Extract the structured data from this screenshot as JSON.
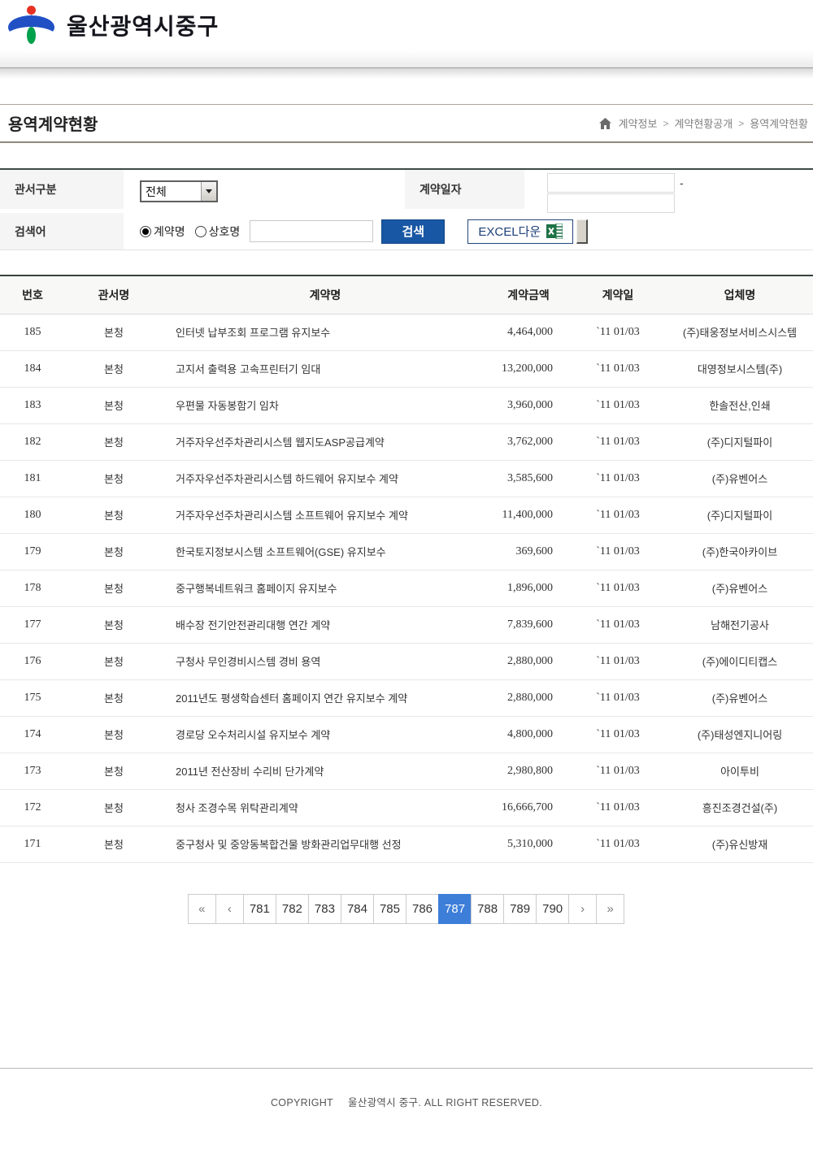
{
  "header": {
    "site_name": "울산광역시중구"
  },
  "page": {
    "title": "용역계약현황"
  },
  "breadcrumb": {
    "separator": ">",
    "items": [
      "계약정보",
      "계약현황공개",
      "용역계약현황"
    ]
  },
  "search": {
    "office_label": "관서구분",
    "office_value": "전체",
    "date_label": "계약일자",
    "date_separator": "-",
    "date_from_value": "",
    "date_to_value": "",
    "keyword_label": "검색어",
    "radio_contract_label": "계약명",
    "radio_company_label": "상호명",
    "keyword_value": "",
    "search_button_label": "검색",
    "excel_button_label": "EXCEL다운"
  },
  "table": {
    "headers": [
      "번호",
      "관서명",
      "계약명",
      "계약금액",
      "계약일",
      "업체명"
    ],
    "rows": [
      {
        "no": "185",
        "office": "본청",
        "name": "인터넷 납부조회 프로그램 유지보수",
        "amount": "4,464,000",
        "date": "`11 01/03",
        "company": "(주)태웅정보서비스시스템"
      },
      {
        "no": "184",
        "office": "본청",
        "name": "고지서 출력용 고속프린터기 임대",
        "amount": "13,200,000",
        "date": "`11 01/03",
        "company": "대영정보시스템(주)"
      },
      {
        "no": "183",
        "office": "본청",
        "name": "우편물 자동봉함기 임차",
        "amount": "3,960,000",
        "date": "`11 01/03",
        "company": "한솔전산,인쇄"
      },
      {
        "no": "182",
        "office": "본청",
        "name": "거주자우선주차관리시스템 웹지도ASP공급계약",
        "amount": "3,762,000",
        "date": "`11 01/03",
        "company": "(주)디지털파이"
      },
      {
        "no": "181",
        "office": "본청",
        "name": "거주자우선주차관리시스템 하드웨어 유지보수 계약",
        "amount": "3,585,600",
        "date": "`11 01/03",
        "company": "(주)유벤어스"
      },
      {
        "no": "180",
        "office": "본청",
        "name": "거주자우선주차관리시스템 소프트웨어 유지보수 계약",
        "amount": "11,400,000",
        "date": "`11 01/03",
        "company": "(주)디지털파이"
      },
      {
        "no": "179",
        "office": "본청",
        "name": "한국토지정보시스템 소프트웨어(GSE) 유지보수",
        "amount": "369,600",
        "date": "`11 01/03",
        "company": "(주)한국아카이브"
      },
      {
        "no": "178",
        "office": "본청",
        "name": "중구행복네트워크 홈페이지 유지보수",
        "amount": "1,896,000",
        "date": "`11 01/03",
        "company": "(주)유벤어스"
      },
      {
        "no": "177",
        "office": "본청",
        "name": "배수장 전기안전관리대행 연간 계약",
        "amount": "7,839,600",
        "date": "`11 01/03",
        "company": "남해전기공사"
      },
      {
        "no": "176",
        "office": "본청",
        "name": "구청사 무인경비시스템 경비 용역",
        "amount": "2,880,000",
        "date": "`11 01/03",
        "company": "(주)에이디티캡스"
      },
      {
        "no": "175",
        "office": "본청",
        "name": "2011년도 평생학습센터 홈페이지 연간 유지보수 계약",
        "amount": "2,880,000",
        "date": "`11 01/03",
        "company": "(주)유벤어스"
      },
      {
        "no": "174",
        "office": "본청",
        "name": "경로당 오수처리시설 유지보수 계약",
        "amount": "4,800,000",
        "date": "`11 01/03",
        "company": "(주)태성엔지니어링"
      },
      {
        "no": "173",
        "office": "본청",
        "name": "2011년 전산장비 수리비 단가계약",
        "amount": "2,980,800",
        "date": "`11 01/03",
        "company": "아이투비"
      },
      {
        "no": "172",
        "office": "본청",
        "name": "청사 조경수목 위탁관리계약",
        "amount": "16,666,700",
        "date": "`11 01/03",
        "company": "흥진조경건설(주)"
      },
      {
        "no": "171",
        "office": "본청",
        "name": "중구청사 및 중앙동복합건물 방화관리업무대행 선정",
        "amount": "5,310,000",
        "date": "`11 01/03",
        "company": "(주)유신방재"
      }
    ]
  },
  "pagination": {
    "first": "«",
    "prev": "‹",
    "pages": [
      "781",
      "782",
      "783",
      "784",
      "785",
      "786",
      "787",
      "788",
      "789",
      "790"
    ],
    "active": "787",
    "next": "›",
    "last": "»"
  },
  "footer": {
    "copyright_prefix": "COPYRIGHT",
    "copyright_text": "울산광역시 중구. ALL RIGHT RESERVED."
  }
}
